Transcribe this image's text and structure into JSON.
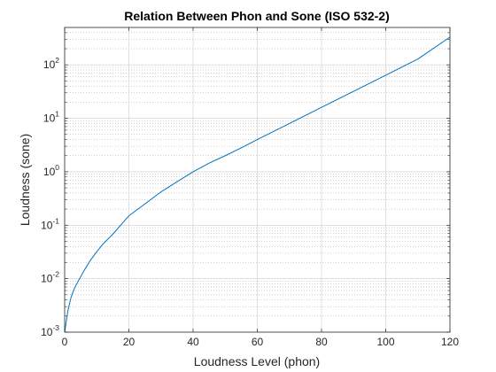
{
  "colors": {
    "line": "#0072BD",
    "axes": "#262626",
    "major_grid": "#cccccc",
    "minor_grid": "#a0a0a0",
    "background": "#ffffff"
  },
  "chart_data": {
    "type": "line",
    "title": "Relation Between Phon and Sone (ISO 532-2)",
    "xlabel": "Loudness Level (phon)",
    "ylabel": "Loudness (sone)",
    "xlim": [
      0,
      120
    ],
    "ylim": [
      0.001,
      500
    ],
    "yscale": "log",
    "grid": true,
    "minor_grid": true,
    "legend": "none",
    "x_ticks": [
      0,
      20,
      40,
      60,
      80,
      100,
      120
    ],
    "x_tick_labels": [
      "0",
      "20",
      "40",
      "60",
      "80",
      "100",
      "120"
    ],
    "y_ticks": [
      0.001,
      0.01,
      0.1,
      1,
      10,
      100
    ],
    "y_tick_labels": [
      {
        "base": "10",
        "exp": "-3"
      },
      {
        "base": "10",
        "exp": "-2"
      },
      {
        "base": "10",
        "exp": "-1"
      },
      {
        "base": "10",
        "exp": "0"
      },
      {
        "base": "10",
        "exp": "1"
      },
      {
        "base": "10",
        "exp": "2"
      }
    ],
    "series": [
      {
        "x": [
          0,
          1,
          2,
          3,
          4,
          6,
          8,
          10,
          12,
          15,
          20,
          25,
          30,
          35,
          40,
          45,
          50,
          55,
          60,
          70,
          80,
          90,
          100,
          110,
          120
        ],
        "y": [
          0.001,
          0.0025,
          0.0045,
          0.0065,
          0.0085,
          0.014,
          0.022,
          0.032,
          0.045,
          0.068,
          0.15,
          0.25,
          0.42,
          0.65,
          1.0,
          1.45,
          2.0,
          2.8,
          4.0,
          8.0,
          16.0,
          32.0,
          64.0,
          128.0,
          330.0
        ]
      }
    ]
  }
}
